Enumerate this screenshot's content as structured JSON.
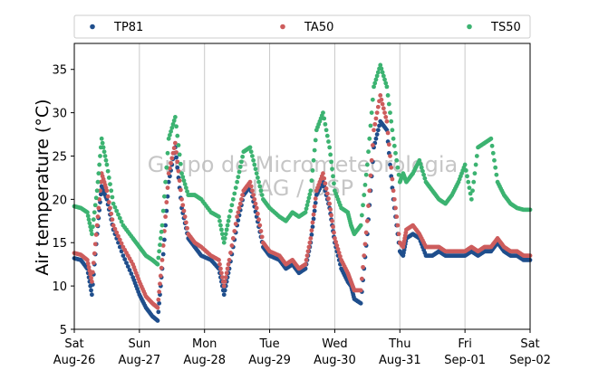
{
  "chart_data": {
    "type": "scatter",
    "ylabel": "Air temperature (°C)",
    "ylim": [
      5,
      38
    ],
    "yticks": [
      5,
      10,
      15,
      20,
      25,
      30,
      35
    ],
    "xlim": [
      0,
      7
    ],
    "xticks": [
      {
        "day": 0,
        "line1": "Sat",
        "line2": "Aug-26"
      },
      {
        "day": 1,
        "line1": "Sun",
        "line2": "Aug-27"
      },
      {
        "day": 2,
        "line1": "Mon",
        "line2": "Aug-28"
      },
      {
        "day": 3,
        "line1": "Tue",
        "line2": "Aug-29"
      },
      {
        "day": 4,
        "line1": "Wed",
        "line2": "Aug-30"
      },
      {
        "day": 5,
        "line1": "Thu",
        "line2": "Aug-31"
      },
      {
        "day": 6,
        "line1": "Fri",
        "line2": "Sep-01"
      },
      {
        "day": 7,
        "line1": "Sat",
        "line2": "Sep-02"
      }
    ],
    "grid": "vertical",
    "legend_position": "top",
    "watermark": [
      "Grupo de Micrometeorologia",
      "IAG / USP"
    ],
    "series": [
      {
        "name": "TP81",
        "color": "#1f4e8c",
        "x": [
          0,
          0.1,
          0.2,
          0.27,
          0.35,
          0.42,
          0.5,
          0.6,
          0.75,
          0.9,
          1.0,
          1.1,
          1.2,
          1.28,
          1.35,
          1.45,
          1.55,
          1.65,
          1.75,
          1.85,
          1.95,
          2.1,
          2.22,
          2.3,
          2.38,
          2.5,
          2.6,
          2.7,
          2.8,
          2.9,
          3.0,
          3.15,
          3.25,
          3.35,
          3.45,
          3.55,
          3.63,
          3.72,
          3.82,
          3.92,
          4.0,
          4.1,
          4.2,
          4.25,
          4.3,
          4.4,
          4.5,
          4.6,
          4.7,
          4.8,
          4.9,
          5.0,
          5.05,
          5.1,
          5.2,
          5.3,
          5.4,
          5.5,
          5.6,
          5.7,
          5.8,
          5.9,
          6.0,
          6.1,
          6.2,
          6.3,
          6.4,
          6.5,
          6.6,
          6.7,
          6.8,
          6.9,
          7.0
        ],
        "y": [
          13.2,
          13.0,
          12.0,
          9.0,
          16.0,
          21.5,
          20.0,
          16.5,
          13.5,
          11.0,
          9.0,
          7.5,
          6.5,
          6.0,
          12.0,
          22.0,
          26.0,
          19.0,
          15.5,
          14.5,
          13.5,
          13.0,
          12.0,
          9.0,
          12.0,
          17.0,
          20.5,
          21.5,
          18.0,
          14.5,
          13.5,
          13.0,
          12.0,
          12.5,
          11.5,
          12.0,
          15.0,
          20.5,
          22.0,
          19.0,
          15.0,
          12.0,
          10.5,
          10.0,
          8.5,
          8.0,
          16.0,
          26.0,
          29.0,
          28.0,
          20.0,
          14.0,
          13.5,
          15.5,
          16.0,
          15.5,
          13.5,
          13.5,
          14.0,
          13.5,
          13.5,
          13.5,
          13.5,
          14.0,
          13.5,
          14.0,
          14.0,
          15.0,
          14.0,
          13.5,
          13.5,
          13.0,
          13.0
        ]
      },
      {
        "name": "TA50",
        "color": "#cd5c5c",
        "x": [
          0,
          0.1,
          0.2,
          0.27,
          0.35,
          0.42,
          0.5,
          0.6,
          0.75,
          0.9,
          1.0,
          1.1,
          1.2,
          1.28,
          1.35,
          1.45,
          1.55,
          1.65,
          1.75,
          1.85,
          1.95,
          2.1,
          2.22,
          2.3,
          2.38,
          2.5,
          2.6,
          2.7,
          2.8,
          2.9,
          3.0,
          3.15,
          3.25,
          3.35,
          3.45,
          3.55,
          3.63,
          3.72,
          3.82,
          3.92,
          4.0,
          4.1,
          4.2,
          4.25,
          4.3,
          4.4,
          4.5,
          4.6,
          4.7,
          4.8,
          4.9,
          5.0,
          5.05,
          5.1,
          5.2,
          5.3,
          5.4,
          5.5,
          5.6,
          5.7,
          5.8,
          5.9,
          6.0,
          6.1,
          6.2,
          6.3,
          6.4,
          6.5,
          6.6,
          6.7,
          6.8,
          6.9,
          7.0
        ],
        "y": [
          13.8,
          13.6,
          13.0,
          10.5,
          17.0,
          23.0,
          21.0,
          17.0,
          14.5,
          12.5,
          10.5,
          8.8,
          8.0,
          7.5,
          13.0,
          23.0,
          26.5,
          20.0,
          16.0,
          15.0,
          14.5,
          13.5,
          13.0,
          10.0,
          13.0,
          18.0,
          21.0,
          22.0,
          19.0,
          15.0,
          14.0,
          13.5,
          12.5,
          13.0,
          12.0,
          12.5,
          15.5,
          21.0,
          23.0,
          19.5,
          15.5,
          13.0,
          11.5,
          10.5,
          9.5,
          9.5,
          17.5,
          28.0,
          32.0,
          29.0,
          21.0,
          15.0,
          14.5,
          16.5,
          17.0,
          16.0,
          14.5,
          14.5,
          14.5,
          14.0,
          14.0,
          14.0,
          14.0,
          14.5,
          14.0,
          14.5,
          14.5,
          15.5,
          14.5,
          14.0,
          14.0,
          13.5,
          13.5
        ]
      },
      {
        "name": "TS50",
        "color": "#3cb371",
        "x": [
          0,
          0.1,
          0.2,
          0.27,
          0.35,
          0.42,
          0.5,
          0.6,
          0.75,
          0.9,
          1.0,
          1.1,
          1.2,
          1.28,
          1.35,
          1.45,
          1.55,
          1.65,
          1.75,
          1.85,
          1.95,
          2.1,
          2.22,
          2.3,
          2.38,
          2.5,
          2.6,
          2.7,
          2.8,
          2.9,
          3.0,
          3.15,
          3.25,
          3.35,
          3.45,
          3.55,
          3.63,
          3.72,
          3.82,
          3.92,
          4.0,
          4.1,
          4.2,
          4.25,
          4.3,
          4.4,
          4.5,
          4.6,
          4.7,
          4.8,
          4.9,
          5.0,
          5.05,
          5.1,
          5.2,
          5.3,
          5.4,
          5.5,
          5.6,
          5.7,
          5.8,
          5.9,
          6.0,
          6.1,
          6.2,
          6.3,
          6.4,
          6.5,
          6.6,
          6.7,
          6.8,
          6.9,
          7.0
        ],
        "y": [
          19.2,
          19.0,
          18.5,
          16.0,
          21.0,
          27.0,
          24.0,
          19.5,
          17.0,
          15.5,
          14.5,
          13.5,
          13.0,
          12.5,
          17.0,
          27.0,
          29.5,
          23.0,
          20.5,
          20.5,
          20.0,
          18.5,
          18.0,
          15.0,
          18.0,
          22.0,
          25.5,
          26.0,
          23.0,
          20.0,
          19.0,
          18.0,
          17.5,
          18.5,
          18.0,
          18.5,
          21.0,
          28.0,
          30.0,
          26.0,
          21.0,
          19.0,
          18.5,
          17.0,
          16.0,
          17.0,
          24.0,
          33.0,
          35.5,
          33.0,
          27.0,
          22.0,
          23.0,
          22.0,
          23.0,
          24.5,
          22.0,
          21.0,
          20.0,
          19.5,
          20.5,
          22.0,
          24.0,
          20.0,
          26.0,
          26.5,
          27.0,
          22.0,
          20.5,
          19.5,
          19.0,
          18.8,
          18.8
        ]
      }
    ]
  }
}
